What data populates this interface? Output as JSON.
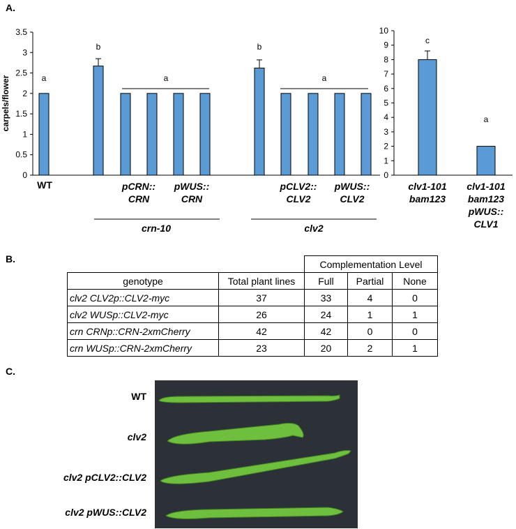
{
  "panel_labels": [
    "A.",
    "B.",
    "C."
  ],
  "chart_data": [
    {
      "type": "bar",
      "y_label": "carpels/flower",
      "color": "#5b9bd5",
      "categories": [
        "WT",
        null,
        "pCRN:: CRN",
        null,
        "pWUS:: CRN",
        null,
        null,
        "pCLV2:: CLV2",
        null,
        "pWUS:: CLV2",
        null
      ],
      "values": [
        2,
        2.67,
        2,
        2,
        2,
        2,
        2.62,
        2,
        2,
        2,
        2
      ],
      "errors": [
        null,
        0.18,
        null,
        null,
        null,
        null,
        0.2,
        null,
        null,
        null,
        null
      ],
      "annotations": [
        "a",
        "b",
        "a",
        "b",
        "a"
      ],
      "group_labels": [
        "crn-10",
        "clv2"
      ],
      "ylim": [
        0,
        3.5
      ],
      "yticks": [
        0,
        0.5,
        1,
        1.5,
        2,
        2.5,
        3,
        3.5
      ]
    },
    {
      "type": "bar",
      "color": "#5b9bd5",
      "categories": [
        "clv1-101 bam123",
        "clv1-101 bam123 pWUS:: CLV1"
      ],
      "values": [
        8,
        2
      ],
      "errors": [
        0.6,
        null
      ],
      "annotations": [
        "c",
        "a"
      ],
      "ylim": [
        0,
        10
      ],
      "yticks": [
        0,
        1,
        2,
        3,
        4,
        5,
        6,
        7,
        8,
        9,
        10
      ]
    }
  ],
  "table": {
    "group_header": "Complementation Level",
    "columns": [
      "genotype",
      "Total plant lines",
      "Full",
      "Partial",
      "None"
    ],
    "rows": [
      [
        "clv2 CLV2p::CLV2-myc",
        37,
        33,
        4,
        0
      ],
      [
        "clv2 WUSp::CLV2-myc",
        26,
        24,
        1,
        1
      ],
      [
        "crn CRNp::CRN-2xmCherry",
        42,
        42,
        0,
        0
      ],
      [
        "crn WUSp::CRN-2xmCherry",
        23,
        20,
        2,
        1
      ]
    ]
  },
  "photo": {
    "labels": [
      "WT",
      "clv2",
      "clv2 pCLV2::CLV2",
      "clv2 pWUS::CLV2"
    ]
  }
}
